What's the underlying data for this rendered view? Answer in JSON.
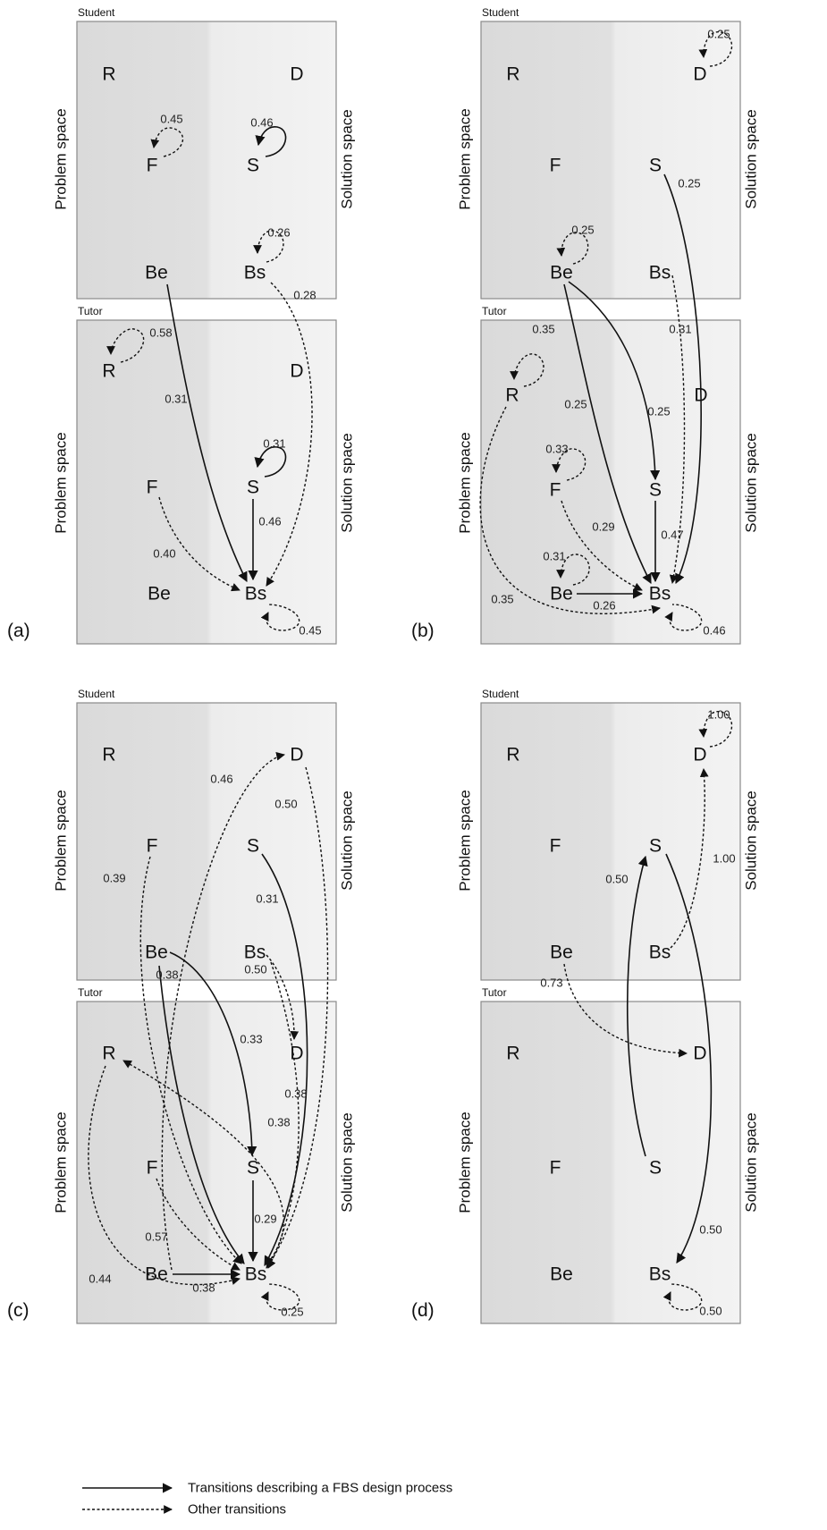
{
  "panels": [
    {
      "label": "(a)",
      "student": {
        "title": "Student",
        "left_side": "Problem space",
        "right_side": "Solution space",
        "nodes": [
          "R",
          "D",
          "F",
          "S",
          "Be",
          "Bs"
        ],
        "edge_labels": [
          "0.45",
          "0.46",
          "0.26",
          "0.28"
        ]
      },
      "tutor": {
        "title": "Tutor",
        "left_side": "Problem space",
        "right_side": "Solution space",
        "nodes": [
          "R",
          "D",
          "F",
          "S",
          "Be",
          "Bs"
        ],
        "edge_labels": [
          "0.58",
          "0.31",
          "0.31",
          "0.46",
          "0.40",
          "0.45"
        ]
      }
    },
    {
      "label": "(b)",
      "student": {
        "title": "Student",
        "left_side": "Problem space",
        "right_side": "Solution space",
        "nodes": [
          "R",
          "D",
          "F",
          "S",
          "Be",
          "Bs"
        ],
        "edge_labels": [
          "0.25",
          "0.25",
          "0.25"
        ]
      },
      "tutor": {
        "title": "Tutor",
        "left_side": "Problem space",
        "right_side": "Solution space",
        "nodes": [
          "R",
          "D",
          "F",
          "S",
          "Be",
          "Bs"
        ],
        "edge_labels": [
          "0.35",
          "0.31",
          "0.25",
          "0.25",
          "0.33",
          "0.29",
          "0.47",
          "0.31",
          "0.35",
          "0.26",
          "0.46"
        ]
      }
    },
    {
      "label": "(c)",
      "student": {
        "title": "Student",
        "left_side": "Problem space",
        "right_side": "Solution space",
        "nodes": [
          "R",
          "D",
          "F",
          "S",
          "Be",
          "Bs"
        ],
        "edge_labels": [
          "0.46",
          "0.50",
          "0.39",
          "0.31",
          "0.38",
          "0.50"
        ]
      },
      "tutor": {
        "title": "Tutor",
        "left_side": "Problem space",
        "right_side": "Solution space",
        "nodes": [
          "R",
          "D",
          "F",
          "S",
          "Be",
          "Bs"
        ],
        "edge_labels": [
          "0.33",
          "0.38",
          "0.38",
          "0.29",
          "0.57",
          "0.44",
          "0.38",
          "0.25"
        ]
      }
    },
    {
      "label": "(d)",
      "student": {
        "title": "Student",
        "left_side": "Problem space",
        "right_side": "Solution space",
        "nodes": [
          "R",
          "D",
          "F",
          "S",
          "Be",
          "Bs"
        ],
        "edge_labels": [
          "1.00",
          "0.50",
          "1.00",
          "0.73"
        ]
      },
      "tutor": {
        "title": "Tutor",
        "left_side": "Problem space",
        "right_side": "Solution space",
        "nodes": [
          "R",
          "D",
          "F",
          "S",
          "Be",
          "Bs"
        ],
        "edge_labels": [
          "0.50",
          "0.50"
        ]
      }
    }
  ],
  "legend": {
    "solid": "Transitions describing a FBS design process",
    "dashed": "Other transitions"
  }
}
